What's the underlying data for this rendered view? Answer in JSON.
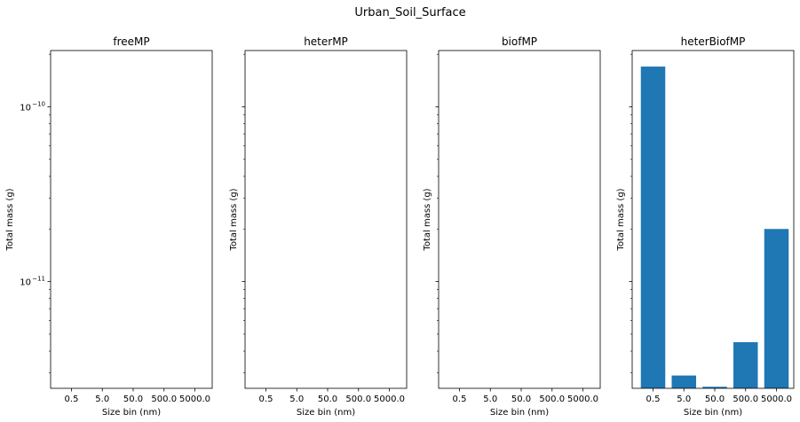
{
  "suptitle": "Urban_Soil_Surface",
  "chart_data": [
    {
      "type": "bar",
      "title": "freeMP",
      "xlabel": "Size bin (nm)",
      "ylabel": "Total mass (g)",
      "yscale": "log",
      "categories": [
        "0.5",
        "5.0",
        "50.0",
        "500.0",
        "5000.0"
      ],
      "values": [
        null,
        null,
        null,
        null,
        null
      ],
      "ytick_labels": [
        "10^-10",
        "10^-11"
      ],
      "ytick_values": [
        1e-10,
        1e-11
      ],
      "ylim": [
        2.45e-12,
        2.1e-10
      ],
      "color": "#1f77b4",
      "grid": false
    },
    {
      "type": "bar",
      "title": "heterMP",
      "xlabel": "Size bin (nm)",
      "ylabel": "Total mass (g)",
      "yscale": "log",
      "categories": [
        "0.5",
        "5.0",
        "50.0",
        "500.0",
        "5000.0"
      ],
      "values": [
        null,
        null,
        null,
        null,
        null
      ],
      "ylim": [
        2.45e-12,
        2.1e-10
      ],
      "color": "#1f77b4",
      "grid": false
    },
    {
      "type": "bar",
      "title": "biofMP",
      "xlabel": "Size bin (nm)",
      "ylabel": "Total mass (g)",
      "yscale": "log",
      "categories": [
        "0.5",
        "5.0",
        "50.0",
        "500.0",
        "5000.0"
      ],
      "values": [
        null,
        null,
        null,
        null,
        null
      ],
      "ylim": [
        2.45e-12,
        2.1e-10
      ],
      "color": "#1f77b4",
      "grid": false
    },
    {
      "type": "bar",
      "title": "heterBiofMP",
      "xlabel": "Size bin (nm)",
      "ylabel": "Total mass (g)",
      "yscale": "log",
      "categories": [
        "0.5",
        "5.0",
        "50.0",
        "500.0",
        "5000.0"
      ],
      "values": [
        1.7e-10,
        2.9e-12,
        2.5e-12,
        4.5e-12,
        2e-11
      ],
      "ylim": [
        2.45e-12,
        2.1e-10
      ],
      "color": "#1f77b4",
      "grid": false
    }
  ]
}
